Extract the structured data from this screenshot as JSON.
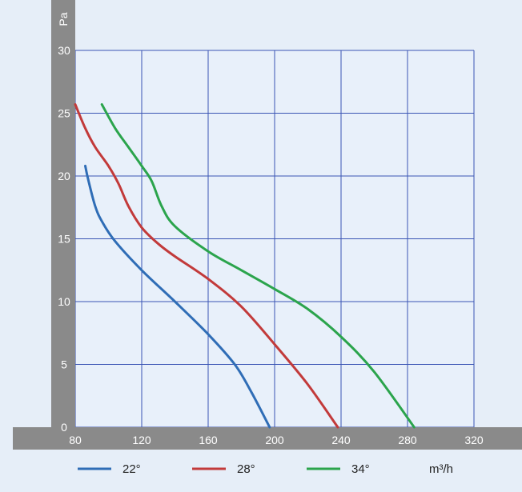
{
  "chart_data": {
    "type": "line",
    "ylabel": "Pa",
    "xunit": "m³/h",
    "xlim": [
      80,
      320
    ],
    "ylim": [
      0,
      30
    ],
    "xticks": [
      80,
      120,
      160,
      200,
      240,
      280,
      320
    ],
    "yticks": [
      0,
      5,
      10,
      15,
      20,
      25,
      30
    ],
    "grid": true,
    "legend": "bottom",
    "series": [
      {
        "name": "22°",
        "color": "#2f6db6",
        "points": [
          [
            86,
            20.8
          ],
          [
            88,
            19.6
          ],
          [
            92,
            17.6
          ],
          [
            96,
            16.4
          ],
          [
            104,
            14.8
          ],
          [
            120,
            12.5
          ],
          [
            140,
            10.0
          ],
          [
            160,
            7.4
          ],
          [
            176,
            5.0
          ],
          [
            186,
            2.8
          ],
          [
            197,
            0
          ]
        ]
      },
      {
        "name": "28°",
        "color": "#c23a3a",
        "points": [
          [
            80,
            25.7
          ],
          [
            86,
            23.8
          ],
          [
            92,
            22.3
          ],
          [
            100,
            20.8
          ],
          [
            106,
            19.4
          ],
          [
            112,
            17.6
          ],
          [
            120,
            15.9
          ],
          [
            130,
            14.6
          ],
          [
            140,
            13.6
          ],
          [
            160,
            11.8
          ],
          [
            180,
            9.6
          ],
          [
            200,
            6.6
          ],
          [
            220,
            3.4
          ],
          [
            238,
            0
          ]
        ]
      },
      {
        "name": "34°",
        "color": "#2ba44c",
        "points": [
          [
            96,
            25.7
          ],
          [
            104,
            23.8
          ],
          [
            112,
            22.3
          ],
          [
            120,
            20.8
          ],
          [
            126,
            19.6
          ],
          [
            132,
            17.6
          ],
          [
            140,
            16.0
          ],
          [
            160,
            14.0
          ],
          [
            180,
            12.5
          ],
          [
            200,
            11.0
          ],
          [
            220,
            9.4
          ],
          [
            240,
            7.2
          ],
          [
            260,
            4.4
          ],
          [
            284,
            0
          ]
        ]
      }
    ]
  },
  "colors": {
    "page_background": "#e6eef8",
    "plot_background": "#e8f0fa",
    "grid": "#3a55b4",
    "axis_band": "#8a8a8a",
    "tick_label": "#ffffff",
    "legend_text": "#222222"
  }
}
